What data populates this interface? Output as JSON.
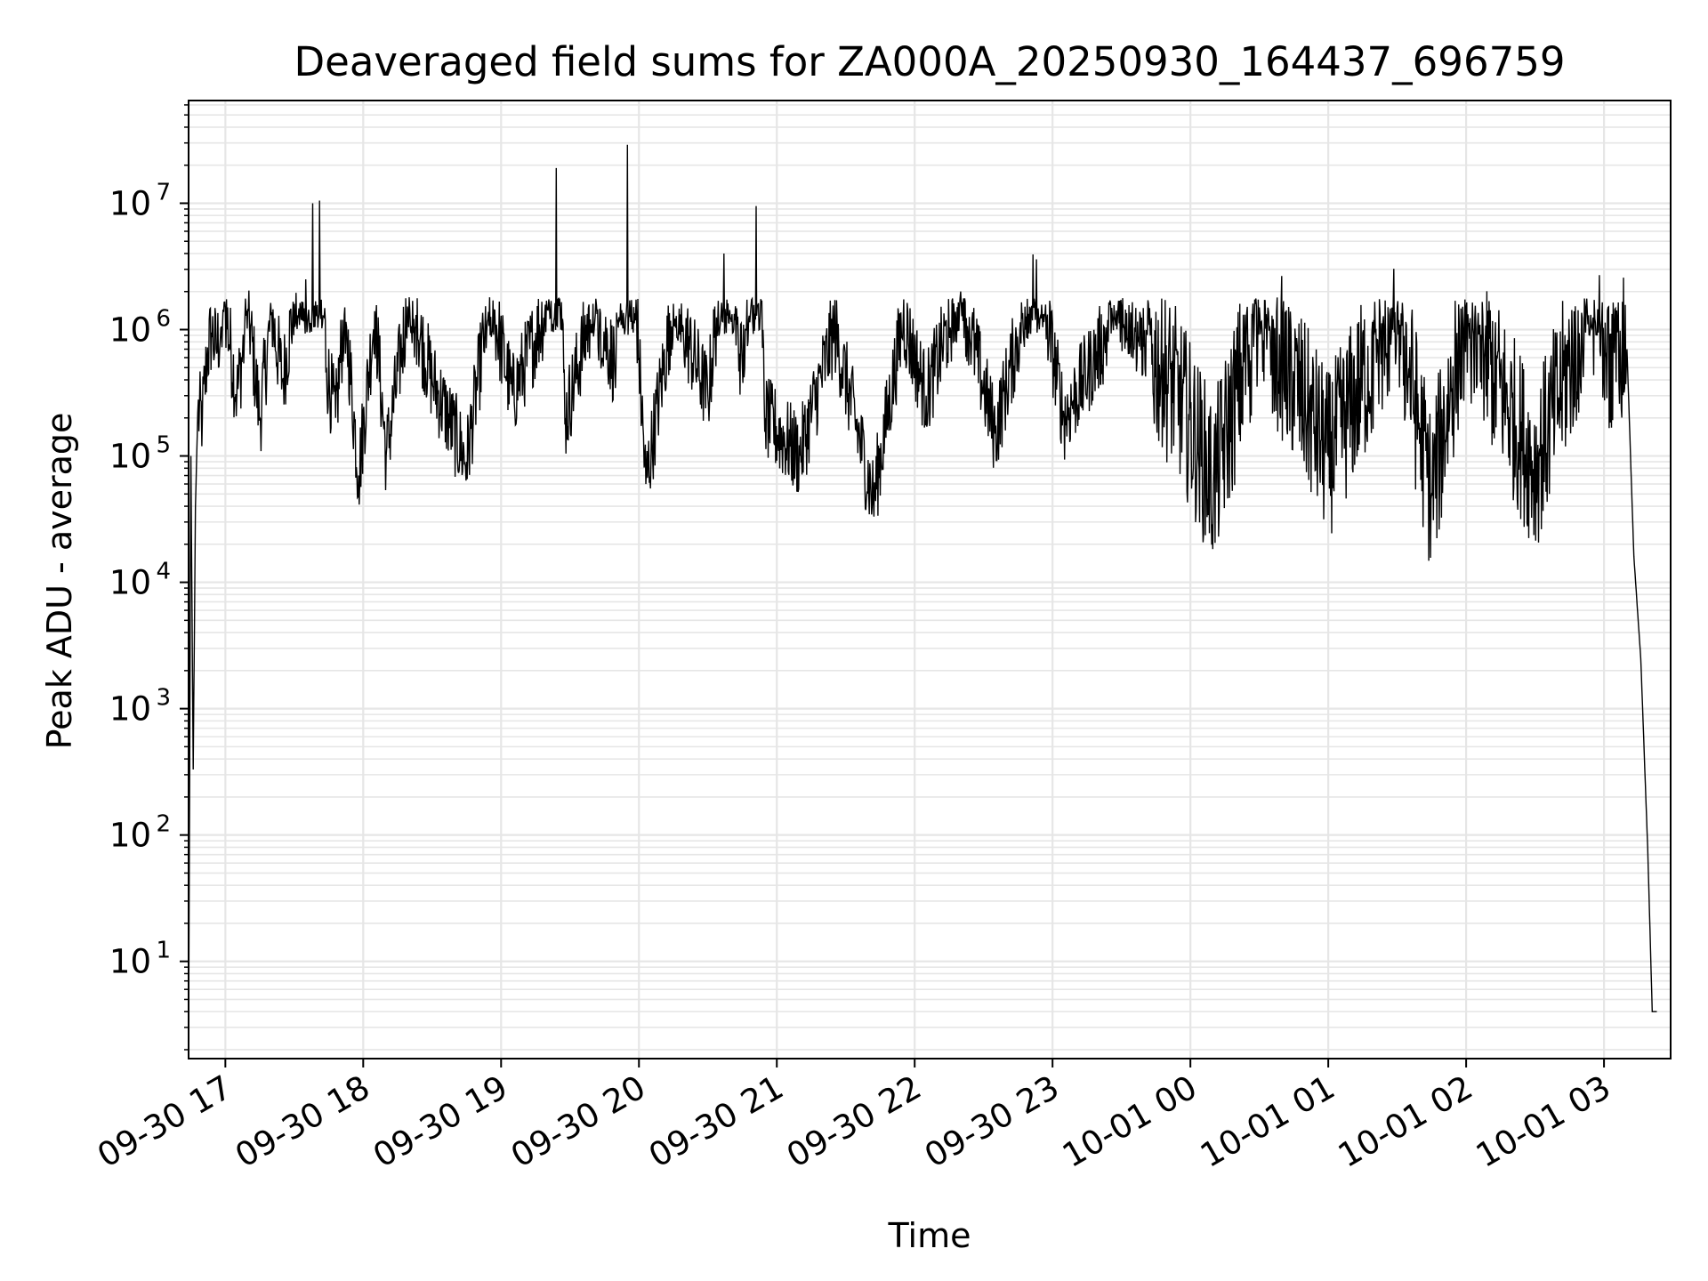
{
  "chart_data": {
    "type": "line",
    "title": "Deaveraged field sums for ZA000A_20250930_164437_696759",
    "xlabel": "Time",
    "ylabel": "Peak ADU - average",
    "yscale": "log",
    "xlim": [
      "2025-09-30 16:44",
      "2025-10-01 03:29"
    ],
    "ylim": [
      1.7,
      65000000
    ],
    "grid": true,
    "line_color": "#000000",
    "grid_color": "#e6e6e6",
    "x_ticks": [
      {
        "value": "2025-09-30 17:00",
        "label": "09-30 17"
      },
      {
        "value": "2025-09-30 18:00",
        "label": "09-30 18"
      },
      {
        "value": "2025-09-30 19:00",
        "label": "09-30 19"
      },
      {
        "value": "2025-09-30 20:00",
        "label": "09-30 20"
      },
      {
        "value": "2025-09-30 21:00",
        "label": "09-30 21"
      },
      {
        "value": "2025-09-30 22:00",
        "label": "09-30 22"
      },
      {
        "value": "2025-09-30 23:00",
        "label": "09-30 23"
      },
      {
        "value": "2025-10-01 00:00",
        "label": "10-01 00"
      },
      {
        "value": "2025-10-01 01:00",
        "label": "10-01 01"
      },
      {
        "value": "2025-10-01 02:00",
        "label": "10-01 02"
      },
      {
        "value": "2025-10-01 03:00",
        "label": "10-01 03"
      }
    ],
    "y_ticks": [
      {
        "value": 10,
        "base": "10",
        "exp": "1"
      },
      {
        "value": 100,
        "base": "10",
        "exp": "2"
      },
      {
        "value": 1000,
        "base": "10",
        "exp": "3"
      },
      {
        "value": 10000,
        "base": "10",
        "exp": "4"
      },
      {
        "value": 100000,
        "base": "10",
        "exp": "5"
      },
      {
        "value": 1000000,
        "base": "10",
        "exp": "6"
      },
      {
        "value": 10000000,
        "base": "10",
        "exp": "7"
      }
    ],
    "series": [
      {
        "points": [
          [
            "2025-09-30 16:44",
            2
          ],
          [
            "2025-09-30 16:45",
            100000
          ],
          [
            "2025-09-30 16:46",
            330
          ],
          [
            "2025-09-30 16:47",
            40000
          ],
          [
            "2025-09-30 16:48",
            220000
          ],
          [
            "2025-09-30 16:50",
            200000
          ],
          [
            "2025-09-30 16:52",
            600000
          ],
          [
            "2025-09-30 16:54",
            950000
          ],
          [
            "2025-09-30 16:56",
            700000
          ],
          [
            "2025-09-30 17:00",
            1500000
          ],
          [
            "2025-09-30 17:05",
            300000
          ],
          [
            "2025-09-30 17:10",
            1400000
          ],
          [
            "2025-09-30 17:15",
            200000
          ],
          [
            "2025-09-30 17:20",
            1300000
          ],
          [
            "2025-09-30 17:25",
            400000
          ],
          [
            "2025-09-30 17:30",
            1600000
          ],
          [
            "2025-09-30 17:35",
            2500000
          ],
          [
            "2025-09-30 17:38",
            10000000
          ],
          [
            "2025-09-30 17:41",
            10500000
          ],
          [
            "2025-09-30 17:44",
            500000
          ],
          [
            "2025-09-30 17:48",
            200000
          ],
          [
            "2025-09-30 17:52",
            1500000
          ],
          [
            "2025-09-30 17:58",
            70000
          ],
          [
            "2025-09-30 18:05",
            1400000
          ],
          [
            "2025-09-30 18:10",
            100000
          ],
          [
            "2025-09-30 18:20",
            1800000
          ],
          [
            "2025-09-30 18:30",
            400000
          ],
          [
            "2025-09-30 18:45",
            90000
          ],
          [
            "2025-09-30 18:55",
            1800000
          ],
          [
            "2025-09-30 19:05",
            300000
          ],
          [
            "2025-09-30 19:20",
            1500000
          ],
          [
            "2025-09-30 19:24",
            19000000
          ],
          [
            "2025-09-30 19:28",
            200000
          ],
          [
            "2025-09-30 19:40",
            1600000
          ],
          [
            "2025-09-30 19:50",
            500000
          ],
          [
            "2025-09-30 19:55",
            29000000
          ],
          [
            "2025-09-30 20:00",
            600000
          ],
          [
            "2025-09-30 20:03",
            60000
          ],
          [
            "2025-09-30 20:15",
            1600000
          ],
          [
            "2025-09-30 20:30",
            300000
          ],
          [
            "2025-09-30 20:37",
            4000000
          ],
          [
            "2025-09-30 20:45",
            500000
          ],
          [
            "2025-09-30 20:51",
            9500000
          ],
          [
            "2025-09-30 20:55",
            200000
          ],
          [
            "2025-09-30 21:10",
            100000
          ],
          [
            "2025-09-30 21:25",
            1000000
          ],
          [
            "2025-09-30 21:42",
            45000
          ],
          [
            "2025-09-30 21:55",
            1200000
          ],
          [
            "2025-09-30 22:05",
            300000
          ],
          [
            "2025-09-30 22:20",
            2000000
          ],
          [
            "2025-09-30 22:35",
            150000
          ],
          [
            "2025-09-30 22:53",
            3600000
          ],
          [
            "2025-09-30 23:05",
            200000
          ],
          [
            "2025-09-30 23:30",
            1500000
          ],
          [
            "2025-09-30 23:55",
            300000
          ],
          [
            "2025-10-01 00:10",
            60000
          ],
          [
            "2025-10-01 00:30",
            1500000
          ],
          [
            "2025-10-01 01:00",
            100000
          ],
          [
            "2025-10-01 01:30",
            1500000
          ],
          [
            "2025-10-01 01:45",
            50000
          ],
          [
            "2025-10-01 02:00",
            1500000
          ],
          [
            "2025-10-01 02:30",
            80000
          ],
          [
            "2025-10-01 02:58",
            2700000
          ],
          [
            "2025-10-01 03:01",
            600000
          ],
          [
            "2025-10-01 03:06",
            1100000
          ],
          [
            "2025-10-01 03:10",
            700000
          ],
          [
            "2025-10-01 03:13",
            16000
          ],
          [
            "2025-10-01 03:16",
            2500
          ],
          [
            "2025-10-01 03:19",
            80
          ],
          [
            "2025-10-01 03:21",
            4
          ],
          [
            "2025-10-01 03:23",
            4
          ]
        ]
      }
    ]
  }
}
